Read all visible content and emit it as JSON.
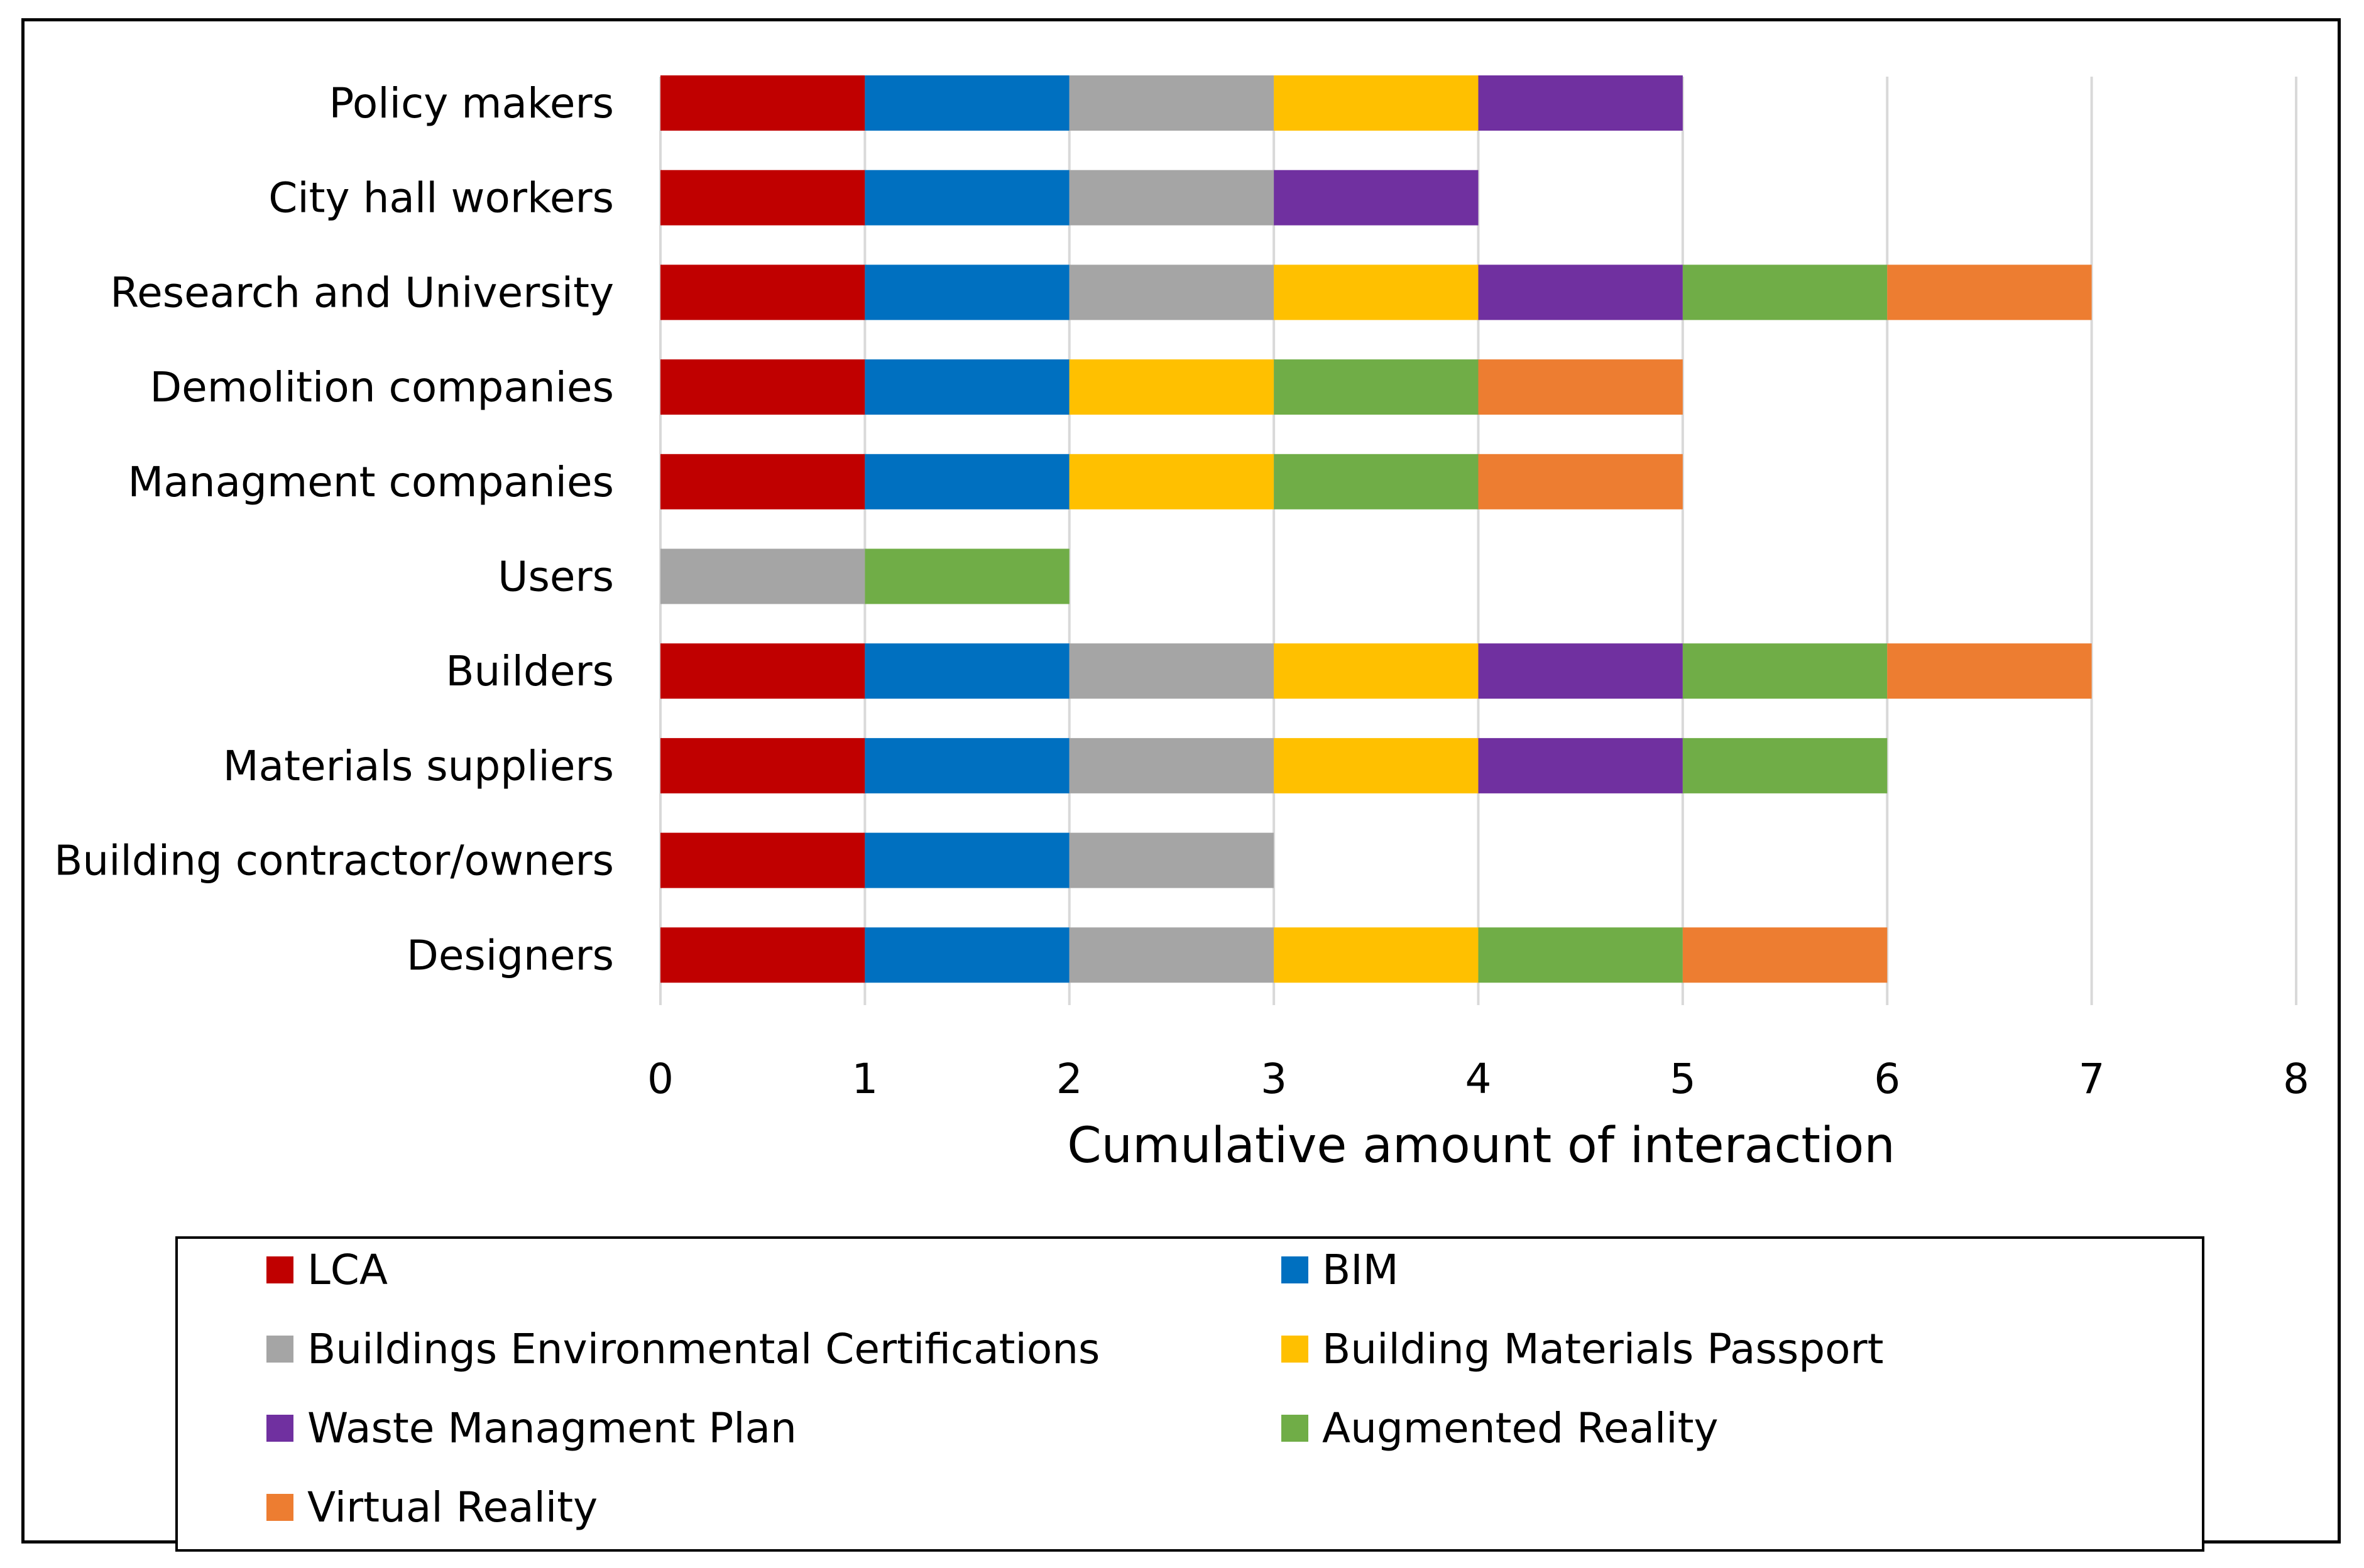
{
  "chart_data": {
    "type": "bar",
    "orientation": "horizontal",
    "stacked": true,
    "title": "",
    "xlabel": "Cumulative amount of interaction",
    "ylabel": "",
    "xlim": [
      0,
      8
    ],
    "xticks": [
      0,
      1,
      2,
      3,
      4,
      5,
      6,
      7,
      8
    ],
    "grid": "vertical",
    "categories": [
      "Policy makers",
      "City hall workers",
      "Research and University",
      "Demolition companies",
      "Managment companies",
      "Users",
      "Builders",
      "Materials suppliers",
      "Building contractor/owners",
      "Designers"
    ],
    "series": [
      {
        "name": "LCA",
        "color": "#C00000",
        "values": [
          1,
          1,
          1,
          1,
          1,
          0,
          1,
          1,
          1,
          1
        ]
      },
      {
        "name": "BIM",
        "color": "#0070C0",
        "values": [
          1,
          1,
          1,
          1,
          1,
          0,
          1,
          1,
          1,
          1
        ]
      },
      {
        "name": "Buildings Environmental Certifications",
        "color": "#A5A5A5",
        "values": [
          1,
          1,
          1,
          0,
          0,
          1,
          1,
          1,
          1,
          1
        ]
      },
      {
        "name": "Building Materials Passport",
        "color": "#FFC000",
        "values": [
          1,
          0,
          1,
          1,
          1,
          0,
          1,
          1,
          0,
          1
        ]
      },
      {
        "name": "Waste Managment Plan",
        "color": "#7030A0",
        "values": [
          1,
          1,
          1,
          0,
          0,
          0,
          1,
          1,
          0,
          0
        ]
      },
      {
        "name": "Augmented Reality",
        "color": "#70AD47",
        "values": [
          0,
          0,
          1,
          1,
          1,
          1,
          1,
          1,
          0,
          1
        ]
      },
      {
        "name": "Virtual Reality",
        "color": "#ED7D31",
        "values": [
          0,
          0,
          1,
          1,
          1,
          0,
          1,
          0,
          0,
          1
        ]
      }
    ],
    "legend_position": "bottom"
  }
}
